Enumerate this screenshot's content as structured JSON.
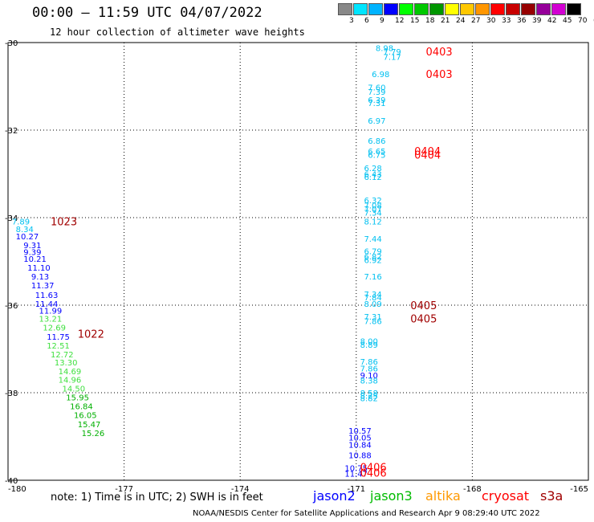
{
  "header": {
    "title": "00:00 — 11:59 UTC 04/07/2022",
    "subtitle": "12 hour collection of altimeter wave heights"
  },
  "legend_scale": {
    "labels": [
      "3",
      "6",
      "9",
      "12",
      "15",
      "18",
      "21",
      "24",
      "27",
      "30",
      "33",
      "36",
      "39",
      "42",
      "45",
      "70",
      "(ft)"
    ],
    "colors": [
      "#888888",
      "#00e5ff",
      "#00b3ff",
      "#0000ff",
      "#00ff00",
      "#00c800",
      "#009600",
      "#ffff00",
      "#ffc800",
      "#ff9600",
      "#ff0000",
      "#c80000",
      "#960000",
      "#96009a",
      "#d200d2",
      "#000000"
    ]
  },
  "satellites": [
    {
      "name": "jason2",
      "color": "#0000ff"
    },
    {
      "name": "jason3",
      "color": "#00bb00"
    },
    {
      "name": "altika",
      "color": "#ff9900"
    },
    {
      "name": "cryosat",
      "color": "#ff0000"
    },
    {
      "name": "s3a",
      "color": "#a00000"
    }
  ],
  "footer": {
    "note": "note:  1) Time is in UTC;  2) SWH is in feet",
    "credit": "NOAA/NESDIS Center for Satellite Applications and Research    Apr  9 08:29:40 UTC 2022"
  },
  "chart_data": {
    "type": "scatter",
    "title": "00:00 — 11:59 UTC 04/07/2022",
    "subtitle": "12 hour collection of altimeter wave heights",
    "xlim": [
      -180,
      -165
    ],
    "ylim": [
      -40,
      -30
    ],
    "x_ticks": [
      "-180",
      "-177",
      "-174",
      "-171",
      "-168",
      "-165"
    ],
    "y_ticks": [
      "-30",
      "-32",
      "-34",
      "-36",
      "-38",
      "-40"
    ],
    "grid": true,
    "track_times": [
      {
        "text": "0403",
        "x": -169.2,
        "y": -30.2,
        "color": "#ff0000"
      },
      {
        "text": "0403",
        "x": -169.2,
        "y": -30.72,
        "color": "#ff0000"
      },
      {
        "text": "0404",
        "x": -169.5,
        "y": -32.48,
        "color": "#ff0000"
      },
      {
        "text": "0404",
        "x": -169.5,
        "y": -32.56,
        "color": "#ff0000"
      },
      {
        "text": "1023",
        "x": -178.9,
        "y": -34.08,
        "color": "#a00000"
      },
      {
        "text": "0405",
        "x": -169.6,
        "y": -36.0,
        "color": "#a00000"
      },
      {
        "text": "0405",
        "x": -169.6,
        "y": -36.3,
        "color": "#a00000"
      },
      {
        "text": "1022",
        "x": -178.2,
        "y": -36.65,
        "color": "#a00000"
      },
      {
        "text": "0406",
        "x": -170.9,
        "y": -39.7,
        "color": "#ff0000"
      },
      {
        "text": "0406",
        "x": -170.9,
        "y": -39.83,
        "color": "#ff0000"
      }
    ],
    "points": [
      {
        "x": -170.5,
        "y": -30.12,
        "v": "8.98",
        "c": "#00c0f0"
      },
      {
        "x": -170.3,
        "y": -30.2,
        "v": "7.79",
        "c": "#00c0f0"
      },
      {
        "x": -170.3,
        "y": -30.32,
        "v": "7.17",
        "c": "#00c0f0"
      },
      {
        "x": -170.6,
        "y": -30.72,
        "v": "6.98",
        "c": "#00c0f0"
      },
      {
        "x": -170.7,
        "y": -31.02,
        "v": "7.60",
        "c": "#00c0f0"
      },
      {
        "x": -170.7,
        "y": -31.12,
        "v": "7.39",
        "c": "#00c0f0"
      },
      {
        "x": -170.7,
        "y": -31.3,
        "v": "6.39",
        "c": "#00c0f0"
      },
      {
        "x": -170.7,
        "y": -31.38,
        "v": "7.31",
        "c": "#00c0f0"
      },
      {
        "x": -170.7,
        "y": -31.78,
        "v": "6.97",
        "c": "#00c0f0"
      },
      {
        "x": -170.7,
        "y": -32.24,
        "v": "6.86",
        "c": "#00c0f0"
      },
      {
        "x": -170.7,
        "y": -32.48,
        "v": "6.65",
        "c": "#00c0f0"
      },
      {
        "x": -170.7,
        "y": -32.56,
        "v": "6.75",
        "c": "#00c0f0"
      },
      {
        "x": -170.8,
        "y": -32.86,
        "v": "6.28",
        "c": "#00c0f0"
      },
      {
        "x": -170.8,
        "y": -33.0,
        "v": "6.43",
        "c": "#00c0f0"
      },
      {
        "x": -170.8,
        "y": -33.06,
        "v": "6.12",
        "c": "#00c0f0"
      },
      {
        "x": -170.8,
        "y": -33.6,
        "v": "6.32",
        "c": "#00c0f0"
      },
      {
        "x": -170.8,
        "y": -33.72,
        "v": "7.08",
        "c": "#00c0f0"
      },
      {
        "x": -170.8,
        "y": -33.8,
        "v": "7.07",
        "c": "#00c0f0"
      },
      {
        "x": -170.8,
        "y": -33.88,
        "v": "7.34",
        "c": "#00c0f0"
      },
      {
        "x": -170.8,
        "y": -34.08,
        "v": "8.12",
        "c": "#00c0f0"
      },
      {
        "x": -170.8,
        "y": -34.48,
        "v": "7.44",
        "c": "#00c0f0"
      },
      {
        "x": -170.8,
        "y": -34.76,
        "v": "6.79",
        "c": "#00c0f0"
      },
      {
        "x": -170.8,
        "y": -34.88,
        "v": "6.82",
        "c": "#00c0f0"
      },
      {
        "x": -170.8,
        "y": -34.96,
        "v": "6.92",
        "c": "#00c0f0"
      },
      {
        "x": -170.8,
        "y": -35.34,
        "v": "7.16",
        "c": "#00c0f0"
      },
      {
        "x": -170.8,
        "y": -35.74,
        "v": "7.34",
        "c": "#00c0f0"
      },
      {
        "x": -170.8,
        "y": -35.82,
        "v": "7.84",
        "c": "#00c0f0"
      },
      {
        "x": -170.8,
        "y": -35.96,
        "v": "8.09",
        "c": "#00c0f0"
      },
      {
        "x": -170.8,
        "y": -36.26,
        "v": "7.31",
        "c": "#00c0f0"
      },
      {
        "x": -170.8,
        "y": -36.36,
        "v": "7.86",
        "c": "#00c0f0"
      },
      {
        "x": -170.9,
        "y": -36.82,
        "v": "8.00",
        "c": "#00c0f0"
      },
      {
        "x": -170.9,
        "y": -36.9,
        "v": "8.89",
        "c": "#00c0f0"
      },
      {
        "x": -170.9,
        "y": -37.28,
        "v": "7.86",
        "c": "#00c0f0"
      },
      {
        "x": -170.9,
        "y": -37.44,
        "v": "7.86",
        "c": "#00c0f0"
      },
      {
        "x": -170.9,
        "y": -37.6,
        "v": "9.10",
        "c": "#0000ff"
      },
      {
        "x": -170.9,
        "y": -37.72,
        "v": "8.38",
        "c": "#00c0f0"
      },
      {
        "x": -170.9,
        "y": -38.0,
        "v": "8.58",
        "c": "#00c0f0"
      },
      {
        "x": -170.9,
        "y": -38.06,
        "v": "8.25",
        "c": "#00c0f0"
      },
      {
        "x": -170.9,
        "y": -38.12,
        "v": "8.82",
        "c": "#00c0f0"
      },
      {
        "x": -171.2,
        "y": -38.86,
        "v": "10.57",
        "c": "#0000ff"
      },
      {
        "x": -171.2,
        "y": -39.02,
        "v": "10.05",
        "c": "#0000ff"
      },
      {
        "x": -171.2,
        "y": -39.18,
        "v": "10.84",
        "c": "#0000ff"
      },
      {
        "x": -171.2,
        "y": -39.42,
        "v": "10.88",
        "c": "#0000ff"
      },
      {
        "x": -171.3,
        "y": -39.72,
        "v": "10.75",
        "c": "#0000ff"
      },
      {
        "x": -171.3,
        "y": -39.84,
        "v": "11.47",
        "c": "#0000ff"
      },
      {
        "x": -179.9,
        "y": -34.08,
        "v": "7.89",
        "c": "#00c0f0"
      },
      {
        "x": -179.8,
        "y": -34.26,
        "v": "8.34",
        "c": "#00c0f0"
      },
      {
        "x": -179.8,
        "y": -34.42,
        "v": "10.27",
        "c": "#0000ff"
      },
      {
        "x": -179.6,
        "y": -34.62,
        "v": "9.31",
        "c": "#0000ff"
      },
      {
        "x": -179.6,
        "y": -34.78,
        "v": "9.39",
        "c": "#0000ff"
      },
      {
        "x": -179.6,
        "y": -34.94,
        "v": "10.21",
        "c": "#0000ff"
      },
      {
        "x": -179.5,
        "y": -35.14,
        "v": "11.10",
        "c": "#0000ff"
      },
      {
        "x": -179.4,
        "y": -35.34,
        "v": "9.13",
        "c": "#0000ff"
      },
      {
        "x": -179.4,
        "y": -35.54,
        "v": "11.37",
        "c": "#0000ff"
      },
      {
        "x": -179.3,
        "y": -35.76,
        "v": "11.63",
        "c": "#0000ff"
      },
      {
        "x": -179.3,
        "y": -35.96,
        "v": "11.44",
        "c": "#0000ff"
      },
      {
        "x": -179.2,
        "y": -36.12,
        "v": "11.99",
        "c": "#0000ff"
      },
      {
        "x": -179.2,
        "y": -36.3,
        "v": "13.21",
        "c": "#40e040"
      },
      {
        "x": -179.1,
        "y": -36.5,
        "v": "12.69",
        "c": "#40e040"
      },
      {
        "x": -179.0,
        "y": -36.72,
        "v": "11.75",
        "c": "#0000ff"
      },
      {
        "x": -179.0,
        "y": -36.92,
        "v": "12.51",
        "c": "#40e040"
      },
      {
        "x": -178.9,
        "y": -37.12,
        "v": "12.72",
        "c": "#40e040"
      },
      {
        "x": -178.8,
        "y": -37.3,
        "v": "13.30",
        "c": "#40e040"
      },
      {
        "x": -178.7,
        "y": -37.5,
        "v": "14.69",
        "c": "#40e040"
      },
      {
        "x": -178.7,
        "y": -37.7,
        "v": "14.96",
        "c": "#40e040"
      },
      {
        "x": -178.6,
        "y": -37.9,
        "v": "14.50",
        "c": "#40e040"
      },
      {
        "x": -178.5,
        "y": -38.1,
        "v": "15.95",
        "c": "#00b000"
      },
      {
        "x": -178.4,
        "y": -38.3,
        "v": "16.84",
        "c": "#00b000"
      },
      {
        "x": -178.3,
        "y": -38.5,
        "v": "16.05",
        "c": "#00b000"
      },
      {
        "x": -178.2,
        "y": -38.72,
        "v": "15.47",
        "c": "#00b000"
      },
      {
        "x": -178.1,
        "y": -38.92,
        "v": "15.26",
        "c": "#00b000"
      }
    ]
  }
}
